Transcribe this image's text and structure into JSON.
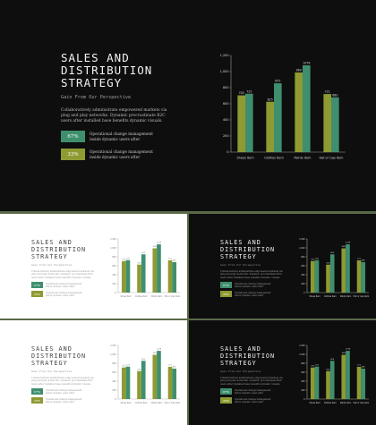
{
  "slide": {
    "title_line1": "SALES AND",
    "title_line2": "DISTRIBUTION",
    "title_line3": "STRATEGY",
    "subtitle": "Gain From Our Perspective",
    "body": "Collaboratively administrate empowered markets via plug and play networks. Dynamic procrastinate B2C users after installed base benefits dynamic visuals.",
    "stat1_value": "67%",
    "stat1_text": "Operational change management inside dynamic users after",
    "stat2_value": "33%",
    "stat2_text": "Operational change management inside dynamic users after"
  },
  "colors": {
    "olive": "#8f9a33",
    "teal": "#3f8f6f",
    "dark_bg": "#0e0e0e",
    "light_bg": "#ffffff",
    "frame": "#5a6a48"
  },
  "chart_data": {
    "type": "bar",
    "categories": [
      "Shoes Item",
      "Clothes Item",
      "Paints Item",
      "Hat or Cap Item"
    ],
    "series": [
      {
        "values": [
          705,
          625,
          989,
          721
        ]
      },
      {
        "values": [
          725,
          855,
          1078,
          680
        ]
      }
    ],
    "value_labels": [
      [
        "705",
        "625",
        "989",
        "721"
      ],
      [
        "725",
        "855",
        "1078",
        "680"
      ]
    ],
    "yticks": [
      "0",
      "200",
      "400",
      "600",
      "800",
      "1,000",
      "1,200"
    ],
    "ylim": [
      0,
      1200
    ]
  }
}
